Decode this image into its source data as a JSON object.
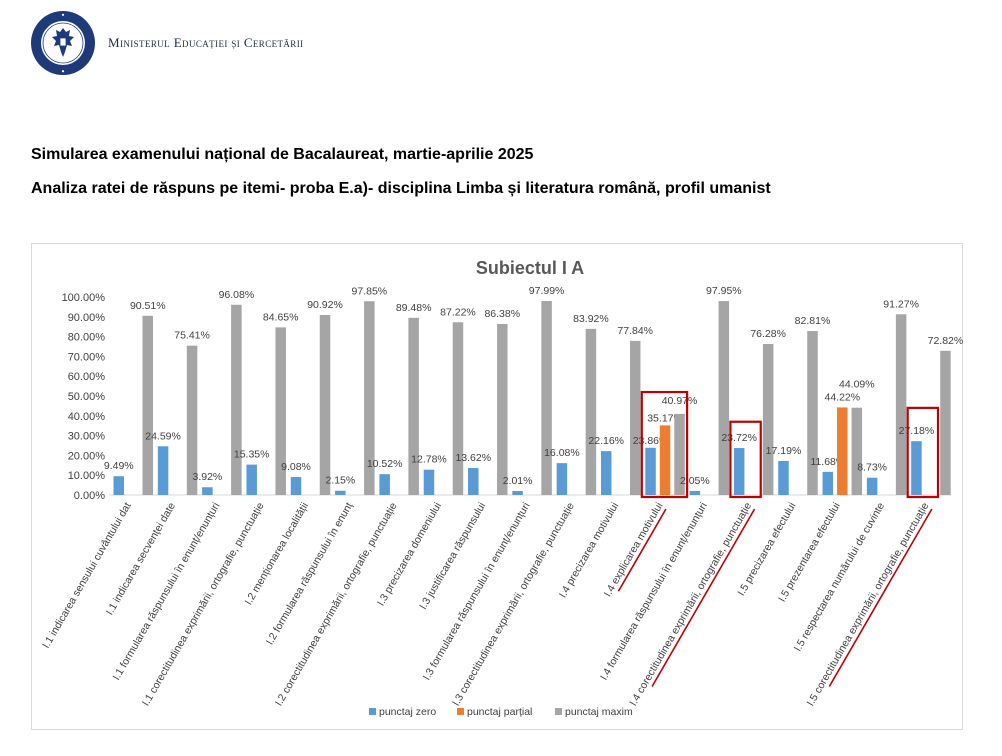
{
  "header": {
    "ministry": "Ministerul Educației și Cercetării",
    "seal_text": "GUVERNUL ROMÂNIEI"
  },
  "document": {
    "title": "Simularea examenului național de Bacalaureat, martie-aprilie 2025",
    "subtitle": "Analiza ratei de răspuns pe itemi- proba E.a)- disciplina  Limba și literatura română, profil umanist"
  },
  "colors": {
    "zero": "#5b9bd5",
    "partial": "#ed7d31",
    "maxim": "#a5a5a5",
    "highlight": "#c00000"
  },
  "chart_data": {
    "type": "bar",
    "title": "Subiectul I A",
    "xlabel": "",
    "ylabel": "",
    "ylim": [
      0,
      100
    ],
    "yticks": [
      "0.00%",
      "10.00%",
      "20.00%",
      "30.00%",
      "40.00%",
      "50.00%",
      "60.00%",
      "70.00%",
      "80.00%",
      "90.00%",
      "100.00%"
    ],
    "grid": false,
    "legend_position": "bottom",
    "categories": [
      "I.1 indicarea sensului cuvântului dat",
      "I.1 indicarea secvenței date",
      "I.1 formularea răspunsului în enunț/enunțuri",
      "I.1 corectitudinea exprimării, ortografie, punctuație",
      "I.2 menționarea localității",
      "I.2 formularea răspunsului în enunț",
      "I.2 corectitudinea exprimării, ortografie, punctuație",
      "I.3 precizarea domeniului",
      "I.3 justificarea răspunsului",
      "I.3 formularea răspunsului în enunț/enunțuri",
      "I.3 corectitudinea exprimării, ortografie, punctuație",
      "I.4 precizarea motivului",
      "I.4 explicarea motivului",
      "I.4 formularea răspunsului în enunț/enunțuri",
      "I.4 corectitudinea exprimării, ortografie, punctuație",
      "I.5 precizarea efectului",
      "I.5 prezentarea efectului",
      "I.5 respectarea numărului de cuvinte",
      "I.5 corectitudinea exprimării, ortografie, punctuație"
    ],
    "series": [
      {
        "name": "punctaj zero",
        "values": [
          9.49,
          24.59,
          3.92,
          15.35,
          9.08,
          2.15,
          10.52,
          12.78,
          13.62,
          2.01,
          16.08,
          22.16,
          23.86,
          2.05,
          23.72,
          17.19,
          11.68,
          8.73,
          27.18
        ],
        "labels": [
          "9.49%",
          "24.59%",
          "3.92%",
          "15.35%",
          "9.08%",
          "2.15%",
          "10.52%",
          "12.78%",
          "13.62%",
          "2.01%",
          "16.08%",
          "22.16%",
          "23.86%",
          "2.05%",
          "23.72%",
          "17.19%",
          "11.68%",
          "8.73%",
          "27.18%"
        ]
      },
      {
        "name": "punctaj parțial",
        "values": [
          null,
          null,
          null,
          null,
          null,
          null,
          null,
          null,
          null,
          null,
          null,
          null,
          35.17,
          null,
          null,
          null,
          44.22,
          null,
          null
        ],
        "labels": [
          "",
          "",
          "",
          "",
          "",
          "",
          "",
          "",
          "",
          "",
          "",
          "",
          "35.17%",
          "",
          "",
          "",
          "44.22%",
          "",
          ""
        ]
      },
      {
        "name": "punctaj maxim",
        "values": [
          90.51,
          75.41,
          96.08,
          84.65,
          90.92,
          97.85,
          89.48,
          87.22,
          86.38,
          97.99,
          83.92,
          77.84,
          40.97,
          97.95,
          76.28,
          82.81,
          44.09,
          91.27,
          72.82
        ],
        "labels": [
          "90.51%",
          "75.41%",
          "96.08%",
          "84.65%",
          "90.92%",
          "97.85%",
          "89.48%",
          "87.22%",
          "86.38%",
          "97.99%",
          "83.92%",
          "77.84%",
          "40.97%",
          "97.95%",
          "76.28%",
          "82.81%",
          "44.09%",
          "91.27%",
          "72.82%"
        ]
      }
    ],
    "highlighted_categories": [
      12,
      14,
      18
    ]
  }
}
